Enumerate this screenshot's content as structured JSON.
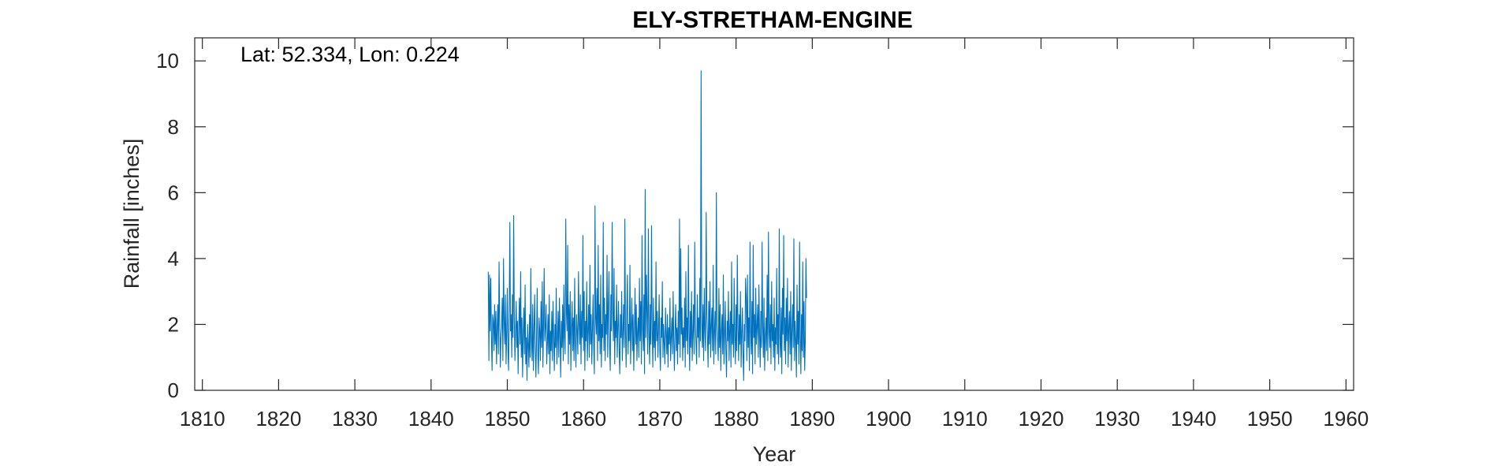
{
  "chart_data": {
    "type": "line",
    "title": "ELY-STRETHAM-ENGINE",
    "annotation": "Lat: 52.334, Lon: 0.224",
    "xlabel": "Year",
    "ylabel": "Rainfall [inches]",
    "xlim": [
      1809,
      1961
    ],
    "ylim": [
      0,
      10.7
    ],
    "xticks": [
      1810,
      1820,
      1830,
      1840,
      1850,
      1860,
      1870,
      1880,
      1890,
      1900,
      1910,
      1920,
      1930,
      1940,
      1950,
      1960
    ],
    "yticks": [
      0,
      2,
      4,
      6,
      8,
      10
    ],
    "grid": false,
    "series_color": "#0072BD",
    "series": [
      {
        "x_start": 1847.5,
        "x_step_months": 1,
        "values": [
          3.6,
          0.9,
          3.5,
          1.8,
          3.4,
          1.6,
          0.6,
          2.3,
          2.1,
          1.2,
          2.6,
          1.4,
          2.4,
          0.8,
          1.9,
          2.6,
          1.1,
          3.9,
          2.2,
          0.7,
          1.6,
          1.9,
          2.8,
          0.9,
          4.0,
          2.1,
          1.4,
          2.9,
          0.8,
          1.7,
          3.1,
          1.2,
          0.6,
          2.5,
          5.1,
          1.8,
          2.3,
          1.0,
          2.9,
          1.6,
          5.3,
          2.2,
          0.9,
          1.8,
          2.7,
          1.3,
          2.1,
          0.5,
          1.9,
          2.8,
          1.4,
          3.6,
          1.0,
          2.2,
          0.4,
          1.7,
          2.5,
          1.1,
          3.2,
          0.8,
          1.6,
          0.3,
          2.0,
          1.4,
          0.7,
          2.3,
          1.0,
          3.7,
          1.5,
          0.9,
          2.6,
          0.6,
          1.8,
          2.9,
          1.2,
          0.4,
          1.6,
          3.1,
          1.1,
          0.5,
          2.2,
          1.8,
          0.9,
          2.7,
          1.3,
          3.3,
          0.7,
          2.0,
          3.7,
          1.5,
          1.9,
          2.6,
          0.8,
          1.4,
          2.3,
          1.1,
          2.9,
          0.5,
          1.8,
          1.2,
          2.4,
          0.9,
          2.7,
          1.6,
          0.6,
          2.0,
          1.3,
          3.1,
          0.8,
          1.5,
          2.4,
          1.0,
          2.8,
          1.7,
          0.4,
          2.1,
          1.3,
          2.6,
          0.9,
          3.2,
          1.6,
          1.1,
          5.2,
          2.4,
          1.8,
          4.4,
          0.8,
          2.6,
          1.4,
          3.0,
          0.6,
          1.9,
          2.7,
          1.2,
          2.2,
          0.9,
          3.4,
          1.5,
          0.7,
          2.3,
          1.8,
          1.1,
          3.6,
          2.0,
          1.4,
          2.9,
          0.8,
          2.4,
          1.6,
          4.7,
          1.2,
          3.0,
          0.6,
          2.1,
          1.5,
          3.3,
          0.9,
          1.8,
          2.6,
          1.0,
          3.8,
          1.4,
          2.3,
          0.8,
          1.9,
          2.9,
          1.3,
          0.5,
          5.6,
          2.2,
          1.7,
          3.1,
          0.9,
          4.4,
          1.5,
          2.6,
          1.1,
          3.5,
          0.7,
          2.0,
          1.6,
          5.1,
          1.2,
          2.8,
          0.9,
          2.3,
          1.7,
          4.1,
          1.0,
          2.5,
          3.6,
          1.3,
          0.6,
          2.9,
          1.8,
          5.1,
          2.4,
          1.5,
          3.7,
          0.8,
          2.1,
          1.6,
          3.2,
          1.0,
          1.9,
          2.7,
          1.2,
          0.5,
          2.3,
          1.6,
          3.0,
          0.9,
          1.7,
          2.6,
          1.3,
          5.2,
          1.8,
          0.7,
          2.4,
          3.5,
          1.1,
          2.0,
          1.5,
          3.8,
          0.8,
          1.9,
          2.8,
          1.2,
          2.3,
          0.6,
          1.7,
          3.1,
          1.4,
          2.6,
          0.9,
          1.8,
          2.2,
          1.0,
          3.4,
          1.5,
          2.7,
          0.8,
          4.7,
          1.9,
          1.2,
          2.9,
          0.5,
          6.1,
          1.6,
          3.5,
          2.3,
          1.1,
          4.9,
          1.7,
          0.8,
          2.6,
          1.4,
          5.0,
          1.9,
          0.7,
          2.8,
          1.3,
          2.1,
          0.9,
          3.9,
          1.5,
          2.4,
          1.0,
          1.8,
          2.9,
          1.2,
          0.6,
          2.2,
          1.6,
          3.3,
          1.0,
          2.0,
          1.4,
          0.8,
          2.5,
          1.7,
          1.1,
          2.3,
          0.7,
          1.9,
          1.4,
          2.8,
          0.9,
          1.6,
          2.2,
          1.1,
          3.0,
          1.5,
          0.6,
          1.8,
          2.6,
          1.2,
          1.9,
          0.8,
          2.4,
          1.4,
          5.2,
          1.0,
          4.3,
          1.7,
          2.5,
          0.9,
          1.9,
          1.3,
          2.8,
          0.7,
          3.6,
          1.5,
          2.2,
          1.1,
          4.4,
          1.8,
          0.6,
          2.4,
          1.3,
          3.0,
          0.9,
          1.7,
          2.6,
          1.1,
          4.5,
          2.0,
          1.4,
          0.8,
          2.9,
          1.6,
          2.2,
          1.0,
          3.4,
          1.5,
          9.7,
          2.1,
          1.3,
          2.6,
          0.9,
          3.1,
          1.8,
          1.2,
          5.4,
          2.3,
          1.6,
          0.7,
          2.7,
          1.4,
          3.3,
          1.0,
          1.9,
          2.5,
          1.2,
          3.8,
          0.8,
          1.7,
          2.4,
          1.1,
          6.0,
          2.0,
          1.5,
          0.9,
          3.1,
          1.3,
          2.6,
          0.6,
          1.8,
          2.3,
          1.1,
          3.5,
          0.8,
          1.6,
          2.7,
          1.2,
          0.4,
          2.1,
          1.5,
          3.0,
          0.9,
          1.8,
          2.4,
          0.7,
          3.9,
          1.4,
          2.0,
          1.0,
          3.4,
          1.6,
          0.8,
          2.6,
          1.2,
          4.1,
          1.9,
          0.9,
          2.3,
          1.4,
          3.0,
          0.7,
          1.7,
          2.5,
          1.1,
          0.3,
          2.0,
          1.5,
          3.4,
          2.8,
          0.9,
          3.5,
          1.3,
          2.2,
          0.6,
          4.5,
          1.8,
          1.1,
          2.7,
          0.5,
          4.4,
          1.6,
          2.3,
          0.8,
          3.1,
          1.4,
          1.9,
          2.6,
          1.0,
          3.2,
          1.7,
          0.7,
          2.4,
          1.3,
          4.5,
          1.9,
          1.0,
          2.8,
          0.6,
          1.6,
          2.2,
          1.2,
          3.5,
          0.9,
          4.8,
          1.8,
          1.3,
          2.6,
          0.8,
          3.3,
          1.5,
          2.0,
          1.0,
          2.8,
          0.6,
          1.9,
          1.4,
          3.7,
          1.1,
          2.3,
          0.8,
          4.9,
          1.6,
          1.0,
          2.5,
          0.5,
          3.1,
          1.7,
          4.7,
          1.2,
          2.2,
          0.8,
          2.8,
          1.5,
          3.4,
          0.7,
          1.9,
          2.4,
          1.1,
          3.0,
          0.6,
          1.8,
          2.6,
          1.3,
          4.6,
          0.9,
          2.1,
          1.5,
          0.4,
          3.2,
          1.4,
          2.4,
          0.8,
          4.5,
          1.6,
          0.5,
          2.3,
          1.2,
          3.9,
          1.0,
          2.7,
          0.6,
          1.5,
          4.0,
          2.8
        ]
      }
    ]
  }
}
